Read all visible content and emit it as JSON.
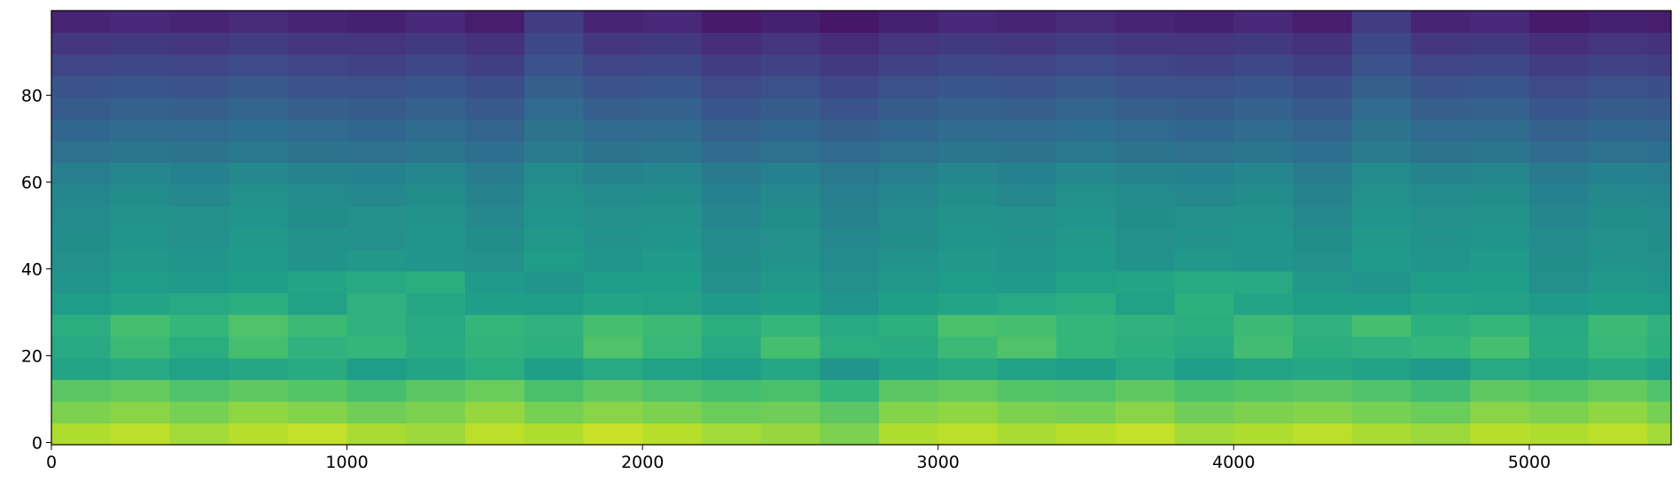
{
  "chart_data": {
    "type": "heatmap",
    "xbins": [
      0,
      200,
      400,
      600,
      800,
      1000,
      1200,
      1400,
      1600,
      1800,
      2000,
      2200,
      2400,
      2600,
      2800,
      3000,
      3200,
      3400,
      3600,
      3800,
      4000,
      4200,
      4400,
      4600,
      4800,
      5000,
      5200,
      5400,
      5480
    ],
    "ybins": [
      -0.5,
      4.5,
      9.5,
      14.5,
      19.5,
      24.5,
      29.5,
      34.5,
      39.5,
      44.5,
      49.5,
      54.5,
      59.5,
      64.5,
      69.5,
      74.5,
      79.5,
      84.5,
      89.5,
      94.5,
      99.5
    ],
    "z": [
      [
        88,
        90,
        86,
        89,
        91,
        87,
        85,
        90,
        88,
        92,
        89,
        86,
        84,
        80,
        88,
        90,
        87,
        89,
        91,
        86,
        88,
        90,
        87,
        85,
        89,
        88,
        90,
        86
      ],
      [
        80,
        82,
        79,
        83,
        81,
        78,
        80,
        84,
        79,
        82,
        80,
        77,
        78,
        74,
        81,
        83,
        80,
        79,
        82,
        78,
        80,
        81,
        79,
        77,
        82,
        80,
        83,
        79
      ],
      [
        74,
        76,
        72,
        75,
        73,
        70,
        74,
        77,
        71,
        75,
        72,
        70,
        71,
        66,
        74,
        76,
        73,
        72,
        75,
        71,
        73,
        74,
        72,
        69,
        75,
        73,
        76,
        72
      ],
      [
        58,
        60,
        57,
        59,
        61,
        55,
        58,
        62,
        56,
        60,
        57,
        55,
        59,
        52,
        58,
        61,
        57,
        56,
        60,
        55,
        58,
        59,
        57,
        54,
        60,
        58,
        61,
        57
      ],
      [
        60,
        68,
        62,
        70,
        64,
        66,
        61,
        65,
        63,
        72,
        67,
        60,
        70,
        62,
        61,
        68,
        72,
        66,
        63,
        60,
        69,
        62,
        64,
        66,
        70,
        61,
        67,
        63
      ],
      [
        62,
        70,
        66,
        72,
        68,
        64,
        60,
        66,
        64,
        70,
        68,
        62,
        66,
        60,
        63,
        71,
        70,
        66,
        64,
        62,
        68,
        64,
        70,
        63,
        66,
        60,
        68,
        64
      ],
      [
        55,
        58,
        60,
        62,
        57,
        64,
        59,
        56,
        55,
        58,
        57,
        54,
        56,
        52,
        56,
        58,
        60,
        62,
        57,
        63,
        58,
        56,
        55,
        58,
        57,
        54,
        56,
        55
      ],
      [
        52,
        55,
        54,
        56,
        58,
        60,
        62,
        54,
        52,
        55,
        56,
        50,
        53,
        50,
        53,
        55,
        54,
        57,
        58,
        61,
        60,
        53,
        52,
        55,
        56,
        50,
        53,
        52
      ],
      [
        50,
        53,
        52,
        54,
        51,
        53,
        52,
        50,
        55,
        52,
        54,
        49,
        51,
        48,
        51,
        53,
        52,
        54,
        51,
        53,
        52,
        50,
        54,
        52,
        54,
        49,
        51,
        50
      ],
      [
        49,
        52,
        50,
        53,
        51,
        50,
        52,
        49,
        53,
        51,
        52,
        48,
        50,
        47,
        49,
        52,
        51,
        53,
        50,
        51,
        52,
        49,
        53,
        51,
        52,
        48,
        50,
        49
      ],
      [
        48,
        51,
        50,
        52,
        49,
        50,
        51,
        47,
        52,
        50,
        51,
        46,
        49,
        45,
        48,
        51,
        50,
        52,
        49,
        50,
        51,
        47,
        52,
        50,
        51,
        46,
        49,
        48
      ],
      [
        46,
        49,
        47,
        50,
        48,
        47,
        49,
        45,
        50,
        48,
        49,
        44,
        47,
        43,
        46,
        49,
        47,
        50,
        48,
        47,
        49,
        45,
        50,
        48,
        49,
        44,
        47,
        46
      ],
      [
        43,
        46,
        44,
        47,
        45,
        44,
        46,
        42,
        48,
        45,
        46,
        41,
        44,
        40,
        43,
        46,
        44,
        47,
        45,
        44,
        46,
        42,
        48,
        45,
        46,
        41,
        44,
        43
      ],
      [
        37,
        39,
        38,
        40,
        38,
        37,
        39,
        36,
        42,
        38,
        39,
        35,
        37,
        34,
        37,
        39,
        38,
        40,
        38,
        37,
        39,
        36,
        42,
        38,
        39,
        35,
        37,
        36
      ],
      [
        33,
        35,
        34,
        36,
        34,
        33,
        35,
        32,
        38,
        34,
        35,
        31,
        33,
        30,
        33,
        35,
        34,
        36,
        34,
        33,
        35,
        32,
        38,
        34,
        35,
        31,
        33,
        32
      ],
      [
        29,
        31,
        30,
        32,
        30,
        29,
        31,
        28,
        34,
        30,
        31,
        27,
        29,
        26,
        29,
        31,
        30,
        32,
        30,
        29,
        31,
        28,
        34,
        30,
        31,
        27,
        29,
        28
      ],
      [
        26,
        27,
        26,
        28,
        26,
        25,
        27,
        24,
        30,
        26,
        27,
        23,
        25,
        22,
        25,
        27,
        26,
        28,
        26,
        25,
        27,
        24,
        30,
        26,
        27,
        23,
        25,
        24
      ],
      [
        21,
        22,
        21,
        23,
        21,
        20,
        22,
        19,
        26,
        21,
        22,
        18,
        20,
        17,
        20,
        22,
        21,
        23,
        21,
        20,
        22,
        19,
        26,
        21,
        22,
        18,
        20,
        19
      ],
      [
        16,
        17,
        16,
        18,
        16,
        15,
        17,
        14,
        22,
        16,
        17,
        13,
        15,
        12,
        15,
        17,
        16,
        18,
        16,
        15,
        17,
        14,
        22,
        16,
        17,
        13,
        15,
        14
      ],
      [
        10,
        11,
        10,
        12,
        10,
        9,
        11,
        8,
        18,
        10,
        11,
        7,
        9,
        6,
        9,
        11,
        10,
        12,
        10,
        9,
        11,
        8,
        18,
        10,
        11,
        7,
        9,
        8
      ]
    ],
    "clim": [
      0,
      100
    ],
    "colormap": [
      "#440154",
      "#482878",
      "#3e4989",
      "#31688e",
      "#26828e",
      "#1f9e89",
      "#35b779",
      "#6ece58",
      "#b5de2b",
      "#fde725"
    ],
    "xlim": [
      0,
      5480
    ],
    "ylim": [
      -0.5,
      99.5
    ],
    "xticks": [
      0,
      1000,
      2000,
      3000,
      4000,
      5000
    ],
    "yticks": [
      0,
      20,
      40,
      60,
      80
    ]
  }
}
